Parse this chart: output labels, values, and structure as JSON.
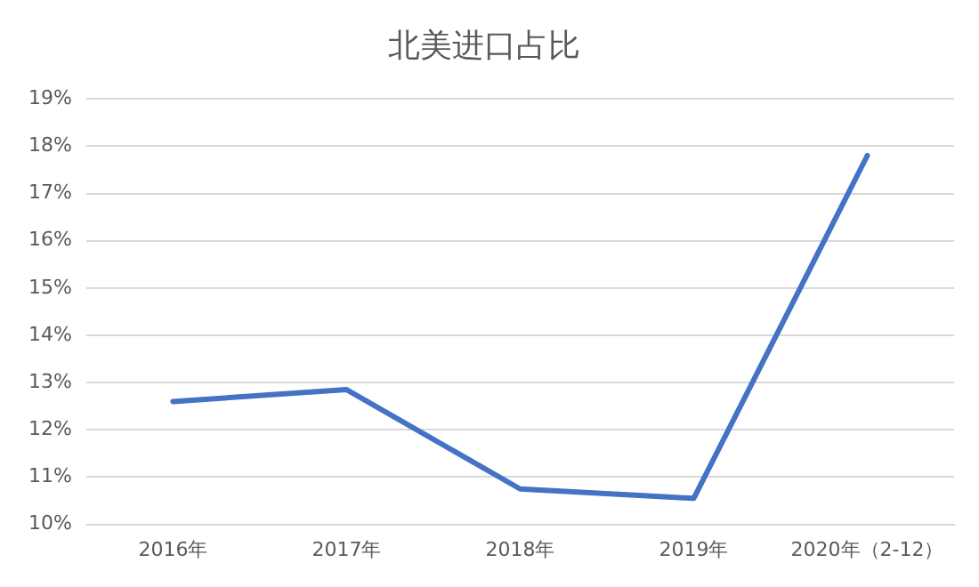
{
  "chart_data": {
    "type": "line",
    "title": "北美进口占比",
    "categories": [
      "2016年",
      "2017年",
      "2018年",
      "2019年",
      "2020年（2-12）"
    ],
    "series": [
      {
        "color": "#4472c4",
        "values": [
          12.6,
          12.85,
          10.75,
          10.55,
          17.8
        ]
      }
    ],
    "ylim": [
      10,
      19
    ],
    "yticks": [
      {
        "value": 10,
        "label": "10%"
      },
      {
        "value": 11,
        "label": "11%"
      },
      {
        "value": 12,
        "label": "12%"
      },
      {
        "value": 13,
        "label": "13%"
      },
      {
        "value": 14,
        "label": "14%"
      },
      {
        "value": 15,
        "label": "15%"
      },
      {
        "value": 16,
        "label": "16%"
      },
      {
        "value": 17,
        "label": "17%"
      },
      {
        "value": 18,
        "label": "18%"
      },
      {
        "value": 19,
        "label": "19%"
      }
    ],
    "grid": "y",
    "legend": false,
    "marker": "none",
    "line_style": "solid"
  }
}
